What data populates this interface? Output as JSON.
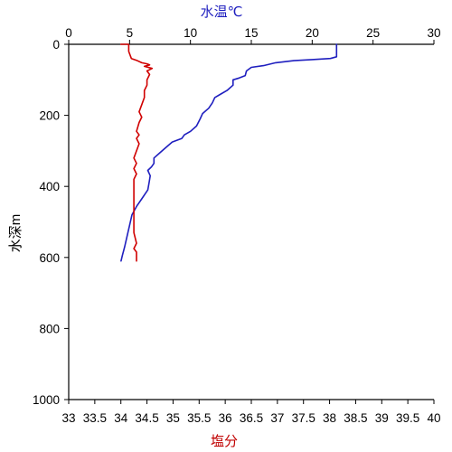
{
  "chart_data": {
    "type": "line",
    "title": "",
    "grid": false,
    "axes": {
      "top": {
        "label": "水温℃",
        "range": [
          0,
          30
        ],
        "ticks": [
          0,
          5,
          10,
          15,
          20,
          25,
          30
        ],
        "tick_labels": [
          "0",
          "5",
          "10",
          "15",
          "20",
          "25",
          "30"
        ]
      },
      "bottom": {
        "label": "塩分",
        "range": [
          33,
          40
        ],
        "ticks": [
          33,
          33.5,
          34,
          34.5,
          35,
          35.5,
          36,
          36.5,
          37,
          37.5,
          38,
          38.5,
          39,
          39.5,
          40
        ],
        "tick_labels": [
          "33",
          "33.5",
          "34",
          "34.5",
          "35",
          "35.5",
          "36",
          "36.5",
          "37",
          "37.5",
          "38",
          "38.5",
          "39",
          "39.5",
          "40"
        ]
      },
      "left": {
        "label": "水深m",
        "range": [
          0,
          1000
        ],
        "inverted": true,
        "ticks": [
          0,
          200,
          400,
          600,
          800,
          1000
        ],
        "tick_labels": [
          "0",
          "200",
          "400",
          "600",
          "800",
          "1000"
        ]
      }
    },
    "series": [
      {
        "axis": "top",
        "color": "#1f1fbf",
        "points": [
          [
            22.0,
            0
          ],
          [
            22.0,
            35
          ],
          [
            21.5,
            40
          ],
          [
            20.0,
            43
          ],
          [
            18.5,
            46
          ],
          [
            17.0,
            52
          ],
          [
            16.0,
            60
          ],
          [
            15.0,
            65
          ],
          [
            14.6,
            75
          ],
          [
            14.5,
            88
          ],
          [
            14.0,
            95
          ],
          [
            13.5,
            100
          ],
          [
            13.5,
            115
          ],
          [
            13.0,
            130
          ],
          [
            12.5,
            140
          ],
          [
            12.0,
            150
          ],
          [
            11.8,
            165
          ],
          [
            11.5,
            180
          ],
          [
            11.0,
            195
          ],
          [
            10.8,
            210
          ],
          [
            10.5,
            230
          ],
          [
            10.0,
            245
          ],
          [
            9.5,
            255
          ],
          [
            9.3,
            265
          ],
          [
            8.5,
            275
          ],
          [
            8.0,
            290
          ],
          [
            7.5,
            305
          ],
          [
            7.0,
            320
          ],
          [
            7.0,
            335
          ],
          [
            6.8,
            345
          ],
          [
            6.5,
            355
          ],
          [
            6.7,
            370
          ],
          [
            6.6,
            390
          ],
          [
            6.5,
            410
          ],
          [
            6.0,
            435
          ],
          [
            5.6,
            455
          ],
          [
            5.2,
            480
          ],
          [
            5.0,
            510
          ],
          [
            4.8,
            540
          ],
          [
            4.6,
            570
          ],
          [
            4.4,
            595
          ],
          [
            4.3,
            610
          ]
        ]
      },
      {
        "axis": "bottom",
        "color": "#d00000",
        "points": [
          [
            34.0,
            0
          ],
          [
            34.15,
            0
          ],
          [
            34.15,
            20
          ],
          [
            34.2,
            40
          ],
          [
            34.3,
            45
          ],
          [
            34.4,
            52
          ],
          [
            34.5,
            55
          ],
          [
            34.55,
            58
          ],
          [
            34.45,
            62
          ],
          [
            34.6,
            68
          ],
          [
            34.5,
            75
          ],
          [
            34.55,
            85
          ],
          [
            34.5,
            100
          ],
          [
            34.5,
            115
          ],
          [
            34.45,
            130
          ],
          [
            34.45,
            150
          ],
          [
            34.4,
            170
          ],
          [
            34.35,
            190
          ],
          [
            34.4,
            205
          ],
          [
            34.35,
            220
          ],
          [
            34.3,
            245
          ],
          [
            34.35,
            255
          ],
          [
            34.3,
            265
          ],
          [
            34.35,
            280
          ],
          [
            34.3,
            300
          ],
          [
            34.25,
            320
          ],
          [
            34.3,
            335
          ],
          [
            34.25,
            350
          ],
          [
            34.3,
            365
          ],
          [
            34.25,
            380
          ],
          [
            34.25,
            410
          ],
          [
            34.25,
            440
          ],
          [
            34.25,
            470
          ],
          [
            34.25,
            500
          ],
          [
            34.25,
            530
          ],
          [
            34.3,
            560
          ],
          [
            34.25,
            575
          ],
          [
            34.3,
            585
          ],
          [
            34.3,
            600
          ],
          [
            34.3,
            610
          ]
        ]
      }
    ]
  }
}
